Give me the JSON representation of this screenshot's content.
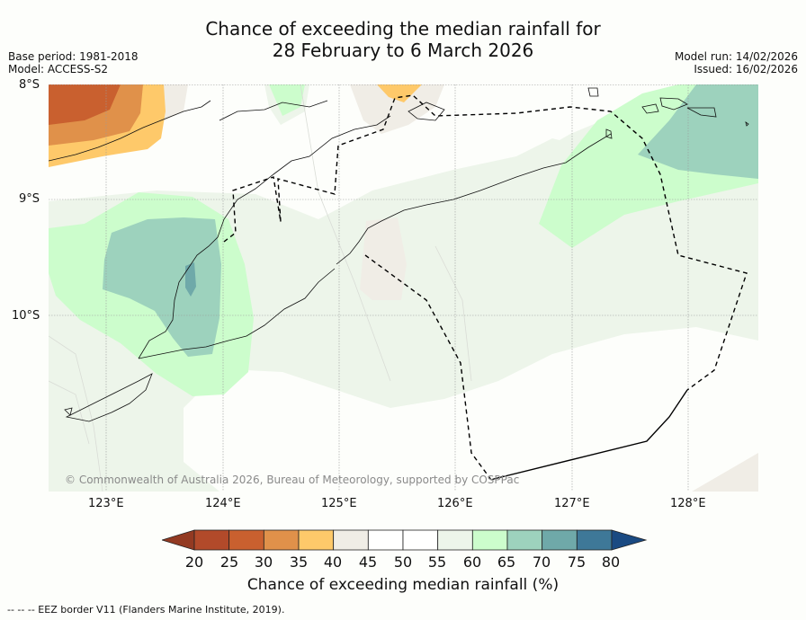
{
  "title": {
    "line1": "Chance of exceeding the median rainfall for",
    "line2": "28 February to 6 March 2026"
  },
  "meta": {
    "base_period": "Base period: 1981-2018",
    "model": "Model: ACCESS-S2",
    "model_run": "Model run: 14/02/2026",
    "issued": "Issued: 16/02/2026"
  },
  "map": {
    "lat_labels": [
      "8°S",
      "9°S",
      "10°S"
    ],
    "lon_labels": [
      "123°E",
      "124°E",
      "125°E",
      "126°E",
      "127°E",
      "128°E"
    ],
    "copyright": "© Commonwealth of Australia 2026, Bureau of Meteorology, supported by COSPPac"
  },
  "colorbar": {
    "label": "Chance of exceeding median rainfall (%)",
    "ticks": [
      "20",
      "25",
      "30",
      "35",
      "40",
      "45",
      "50",
      "55",
      "60",
      "65",
      "70",
      "75",
      "80"
    ],
    "colors": [
      "#b24a2a",
      "#c9602f",
      "#e0914a",
      "#fec96a",
      "#f0ede6",
      "#ffffff",
      "#ffffff",
      "#edf5ea",
      "#ccfdcc",
      "#9dd2bd",
      "#6fa9a9",
      "#3e7898"
    ],
    "under_color": "#933a22",
    "over_color": "#1a4a82"
  },
  "footer": {
    "eez_note": "--  --  -- EEZ border V11 (Flanders Marine Institute, 2019)."
  }
}
